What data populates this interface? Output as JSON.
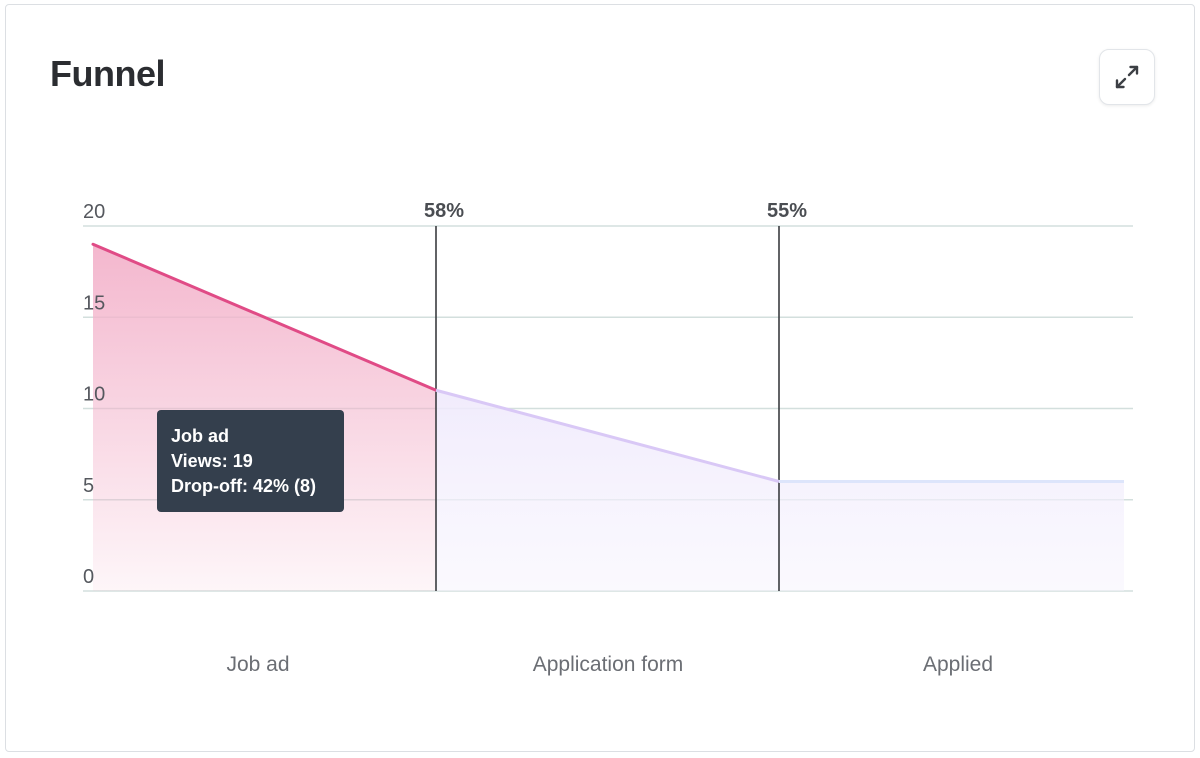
{
  "card": {
    "title": "Funnel"
  },
  "expand_button": {
    "icon": "expand-arrows-icon"
  },
  "chart_data": {
    "type": "area",
    "title": "",
    "categories": [
      "Job ad",
      "Application form",
      "Applied"
    ],
    "values": [
      19,
      11,
      6
    ],
    "step_conversion_labels": [
      "58%",
      "55%"
    ],
    "ylim": [
      0,
      20
    ],
    "y_ticks": [
      0,
      5,
      10,
      15,
      20
    ],
    "grid": true,
    "colors": {
      "active_line": "#e04b86",
      "active_fill": "#f3b3cb",
      "inactive_line_1": "#d9c8f6",
      "inactive_line_2": "#dde5fb",
      "inactive_fill": "#f5f2fd",
      "grid": "#d3dfdd",
      "divider": "#3a3c40"
    },
    "tooltip": {
      "title": "Job ad",
      "views": "Views: 19",
      "dropoff": "Drop-off: 42% (8)"
    }
  }
}
